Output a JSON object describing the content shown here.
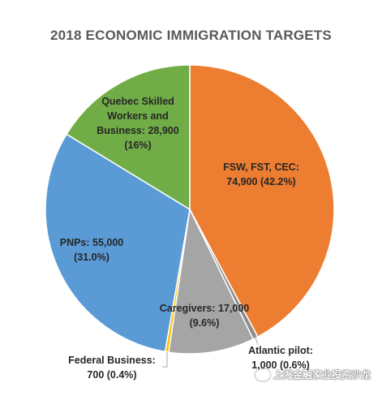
{
  "chart_data": {
    "type": "pie",
    "title": "2018 ECONOMIC IMMIGRATION TARGETS",
    "slices": [
      {
        "name": "FSW, FST, CEC",
        "value": 74900,
        "label_lines": [
          "FSW, FST, CEC:",
          "74,900 (42.2%)"
        ],
        "color": "#ED7D31"
      },
      {
        "name": "Atlantic pilot",
        "value": 1000,
        "label_lines": [
          "Atlantic pilot:",
          "1,000 (0.6%)"
        ],
        "color": "#8C8C8C"
      },
      {
        "name": "Caregivers",
        "value": 17000,
        "label_lines": [
          "Caregivers: 17,000",
          "(9.6%)"
        ],
        "color": "#A5A5A5"
      },
      {
        "name": "Federal Business",
        "value": 700,
        "label_lines": [
          "Federal Business:",
          "700 (0.4%)"
        ],
        "color": "#FFC000"
      },
      {
        "name": "PNPs",
        "value": 55000,
        "label_lines": [
          "PNPs: 55,000",
          "(31.0%)"
        ],
        "color": "#5B9BD5"
      },
      {
        "name": "Quebec Skilled Workers and Business",
        "value": 28900,
        "label_lines": [
          "Quebec Skilled",
          "Workers and",
          "Business: 28,900",
          "(16%)"
        ],
        "color": "#70AD47"
      }
    ]
  },
  "watermark": {
    "text": "上海金融家业投资沙龙"
  }
}
